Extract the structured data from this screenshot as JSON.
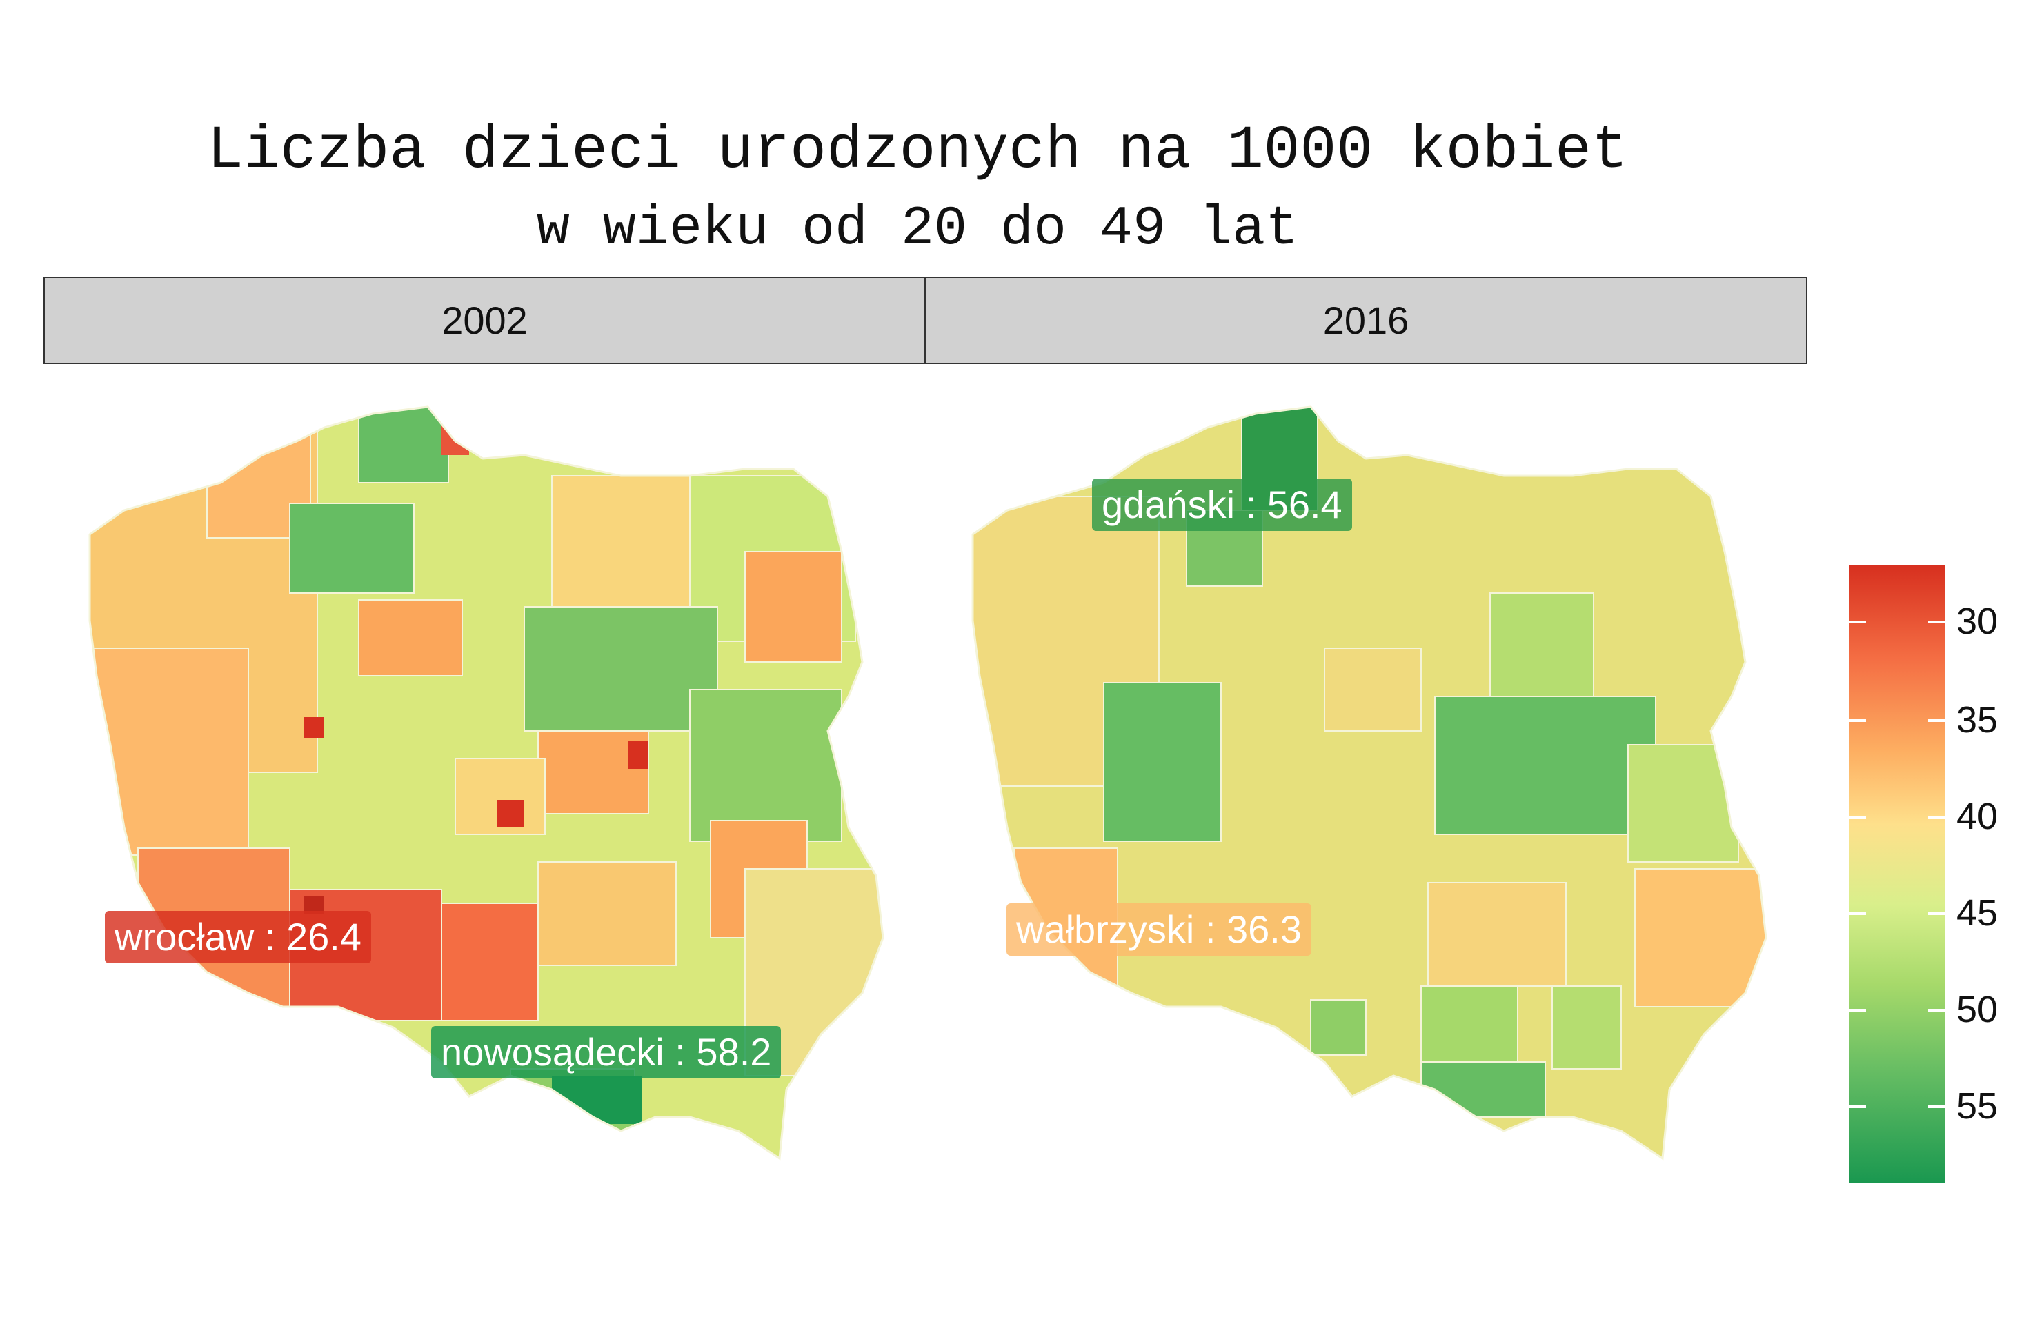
{
  "title": "Liczba dzieci urodzonych na 1000 kobiet",
  "subtitle": "w wieku od 20 do 49 lat",
  "facets": [
    "2002",
    "2016"
  ],
  "legend": {
    "ticks": [
      "30",
      "35",
      "40",
      "45",
      "50",
      "55"
    ],
    "colors": [
      "#d7301f",
      "#f46d43",
      "#fdae61",
      "#fee08b",
      "#d9ef8b",
      "#a6d96a",
      "#66bd63",
      "#1a9850"
    ]
  },
  "labels": {
    "a2002_1": {
      "text": "wrocław : 26.4",
      "color": "#d7301f"
    },
    "a2002_2": {
      "text": "nowosądecki : 58.2",
      "color": "#1a9850"
    },
    "a2016_1": {
      "text": "gdański : 56.4",
      "color": "#2e9a4a"
    },
    "a2016_2": {
      "text": "wałbrzyski : 36.3",
      "color": "#fdb96b"
    }
  },
  "map_colors": {
    "base2002": "#d9e87c",
    "base2016": "#e8e07c"
  }
}
